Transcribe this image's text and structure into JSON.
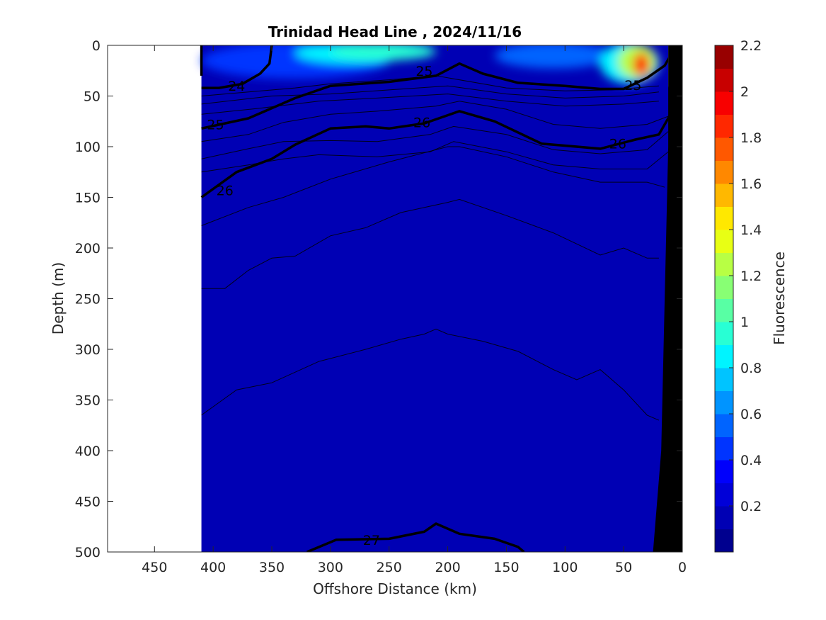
{
  "chart_data": {
    "type": "heatmap",
    "title": "Trinidad Head Line , 2024/11/16",
    "xlabel": "Offshore Distance (km)",
    "ylabel": "Depth (m)",
    "colorbar_label": "Fluorescence",
    "xlim": [
      490,
      0
    ],
    "ylim": [
      0,
      500
    ],
    "x_reversed": true,
    "y_reversed": true,
    "x_ticks": [
      "450",
      "400",
      "350",
      "300",
      "250",
      "200",
      "150",
      "100",
      "50",
      "0"
    ],
    "y_ticks": [
      "0",
      "50",
      "100",
      "150",
      "200",
      "250",
      "300",
      "350",
      "400",
      "450",
      "500"
    ],
    "colorbar_ticks": [
      "0.2",
      "0.4",
      "0.6",
      "0.8",
      "1",
      "1.2",
      "1.4",
      "1.6",
      "1.8",
      "2",
      "2.2"
    ],
    "colorbar_range": [
      0,
      2.2
    ],
    "colorbar_levels": [
      "#00008f",
      "#0000b4",
      "#0000d8",
      "#0000fc",
      "#0034ff",
      "#0064ff",
      "#0094ff",
      "#00c4ff",
      "#00f4ff",
      "#28ffd4",
      "#58ffa4",
      "#88ff74",
      "#b8ff44",
      "#e8ff14",
      "#ffe800",
      "#ffb800",
      "#ff8800",
      "#ff5800",
      "#ff2800",
      "#f80000",
      "#c80000",
      "#980000"
    ],
    "data_extent_km": [
      410,
      0
    ],
    "background_fluorescence": 0.1,
    "surface_features": [
      {
        "x": [
          410,
          250
        ],
        "depth": [
          0,
          30
        ],
        "fluorescence": 0.45
      },
      {
        "x": [
          330,
          230
        ],
        "depth": [
          0,
          15
        ],
        "fluorescence": 0.85
      },
      {
        "x": [
          300,
          210
        ],
        "depth": [
          0,
          12
        ],
        "fluorescence": 0.95
      },
      {
        "x": [
          160,
          60
        ],
        "depth": [
          0,
          20
        ],
        "fluorescence": 0.5
      },
      {
        "x": [
          70,
          20
        ],
        "depth": [
          0,
          35
        ],
        "fluorescence": 0.85
      },
      {
        "x": [
          55,
          22
        ],
        "depth": [
          2,
          30
        ],
        "fluorescence": 1.3
      },
      {
        "x": [
          42,
          28
        ],
        "depth": [
          10,
          28
        ],
        "fluorescence": 1.85
      }
    ],
    "density_contours": [
      {
        "label": "24",
        "thick": true,
        "points": [
          [
            410,
            0
          ],
          [
            410,
            30
          ]
        ]
      },
      {
        "label": "24",
        "thick": true,
        "points": [
          [
            410,
            42
          ],
          [
            395,
            42
          ],
          [
            375,
            38
          ],
          [
            360,
            28
          ],
          [
            352,
            18
          ],
          [
            350,
            0
          ]
        ]
      },
      {
        "label": "25",
        "thick": true,
        "points": [
          [
            410,
            82
          ],
          [
            370,
            72
          ],
          [
            330,
            52
          ],
          [
            300,
            40
          ],
          [
            250,
            36
          ],
          [
            210,
            30
          ],
          [
            190,
            18
          ],
          [
            170,
            28
          ],
          [
            140,
            37
          ],
          [
            100,
            40
          ],
          [
            70,
            43
          ],
          [
            50,
            43
          ],
          [
            30,
            32
          ],
          [
            15,
            20
          ],
          [
            10,
            10
          ]
        ]
      },
      {
        "label": "26",
        "thick": true,
        "points": [
          [
            410,
            150
          ],
          [
            380,
            125
          ],
          [
            350,
            112
          ],
          [
            330,
            98
          ],
          [
            300,
            82
          ],
          [
            270,
            80
          ],
          [
            250,
            82
          ],
          [
            220,
            77
          ],
          [
            190,
            65
          ],
          [
            160,
            75
          ],
          [
            120,
            97
          ],
          [
            90,
            100
          ],
          [
            70,
            102
          ],
          [
            40,
            93
          ],
          [
            20,
            88
          ],
          [
            10,
            68
          ]
        ]
      },
      {
        "label": "27",
        "thick": true,
        "points": [
          [
            320,
            500
          ],
          [
            295,
            488
          ],
          [
            250,
            487
          ],
          [
            220,
            480
          ],
          [
            210,
            472
          ],
          [
            190,
            482
          ],
          [
            160,
            487
          ],
          [
            140,
            495
          ],
          [
            135,
            500
          ]
        ]
      }
    ],
    "contour_label_positions": [
      {
        "label": "24",
        "x": 380,
        "depth": 40
      },
      {
        "label": "25",
        "x": 398,
        "depth": 78
      },
      {
        "label": "25",
        "x": 220,
        "depth": 25
      },
      {
        "label": "25",
        "x": 42,
        "depth": 39
      },
      {
        "label": "26",
        "x": 390,
        "depth": 143
      },
      {
        "label": "26",
        "x": 222,
        "depth": 76
      },
      {
        "label": "26",
        "x": 55,
        "depth": 97
      },
      {
        "label": "27",
        "x": 265,
        "depth": 488
      }
    ],
    "thin_contours": [
      [
        [
          410,
          50
        ],
        [
          330,
          42
        ],
        [
          300,
          38
        ],
        [
          250,
          34
        ],
        [
          210,
          30
        ],
        [
          150,
          42
        ],
        [
          100,
          45
        ],
        [
          60,
          44
        ],
        [
          20,
          40
        ]
      ],
      [
        [
          410,
          58
        ],
        [
          350,
          50
        ],
        [
          300,
          48
        ],
        [
          250,
          44
        ],
        [
          200,
          40
        ],
        [
          150,
          48
        ],
        [
          100,
          52
        ],
        [
          50,
          50
        ],
        [
          20,
          46
        ]
      ],
      [
        [
          410,
          68
        ],
        [
          360,
          62
        ],
        [
          310,
          55
        ],
        [
          260,
          52
        ],
        [
          200,
          48
        ],
        [
          150,
          55
        ],
        [
          100,
          60
        ],
        [
          50,
          58
        ],
        [
          20,
          55
        ]
      ],
      [
        [
          410,
          95
        ],
        [
          370,
          88
        ],
        [
          340,
          76
        ],
        [
          300,
          68
        ],
        [
          260,
          65
        ],
        [
          210,
          60
        ],
        [
          190,
          55
        ],
        [
          150,
          63
        ],
        [
          110,
          78
        ],
        [
          70,
          82
        ],
        [
          30,
          78
        ],
        [
          12,
          70
        ]
      ],
      [
        [
          410,
          112
        ],
        [
          370,
          102
        ],
        [
          340,
          95
        ],
        [
          300,
          94
        ],
        [
          260,
          95
        ],
        [
          215,
          88
        ],
        [
          195,
          80
        ],
        [
          150,
          88
        ],
        [
          110,
          103
        ],
        [
          70,
          107
        ],
        [
          30,
          103
        ],
        [
          12,
          85
        ]
      ],
      [
        [
          410,
          125
        ],
        [
          370,
          118
        ],
        [
          340,
          112
        ],
        [
          310,
          108
        ],
        [
          260,
          110
        ],
        [
          215,
          105
        ],
        [
          195,
          95
        ],
        [
          150,
          105
        ],
        [
          110,
          118
        ],
        [
          70,
          122
        ],
        [
          30,
          122
        ],
        [
          12,
          105
        ]
      ],
      [
        [
          410,
          178
        ],
        [
          370,
          160
        ],
        [
          340,
          150
        ],
        [
          300,
          132
        ],
        [
          250,
          115
        ],
        [
          200,
          100
        ],
        [
          190,
          100
        ],
        [
          150,
          110
        ],
        [
          110,
          125
        ],
        [
          70,
          135
        ],
        [
          30,
          135
        ],
        [
          15,
          140
        ]
      ],
      [
        [
          410,
          240
        ],
        [
          390,
          240
        ],
        [
          370,
          222
        ],
        [
          350,
          210
        ],
        [
          330,
          208
        ],
        [
          300,
          188
        ],
        [
          270,
          180
        ],
        [
          240,
          165
        ],
        [
          200,
          155
        ],
        [
          190,
          152
        ],
        [
          150,
          168
        ],
        [
          110,
          185
        ],
        [
          70,
          207
        ],
        [
          50,
          200
        ],
        [
          30,
          210
        ],
        [
          20,
          210
        ]
      ],
      [
        [
          410,
          365
        ],
        [
          380,
          340
        ],
        [
          350,
          333
        ],
        [
          310,
          312
        ],
        [
          270,
          300
        ],
        [
          240,
          290
        ],
        [
          220,
          285
        ],
        [
          210,
          280
        ],
        [
          200,
          285
        ],
        [
          170,
          292
        ],
        [
          140,
          302
        ],
        [
          110,
          320
        ],
        [
          90,
          330
        ],
        [
          70,
          320
        ],
        [
          50,
          340
        ],
        [
          30,
          365
        ],
        [
          20,
          370
        ]
      ]
    ],
    "bathymetry": [
      [
        12,
        0
      ],
      [
        0,
        0
      ],
      [
        0,
        500
      ],
      [
        25,
        500
      ],
      [
        18,
        400
      ],
      [
        15,
        250
      ],
      [
        12,
        100
      ]
    ],
    "white_mask": [
      [
        12,
        0
      ],
      [
        4,
        0
      ],
      [
        4,
        100
      ],
      [
        12,
        40
      ]
    ]
  }
}
